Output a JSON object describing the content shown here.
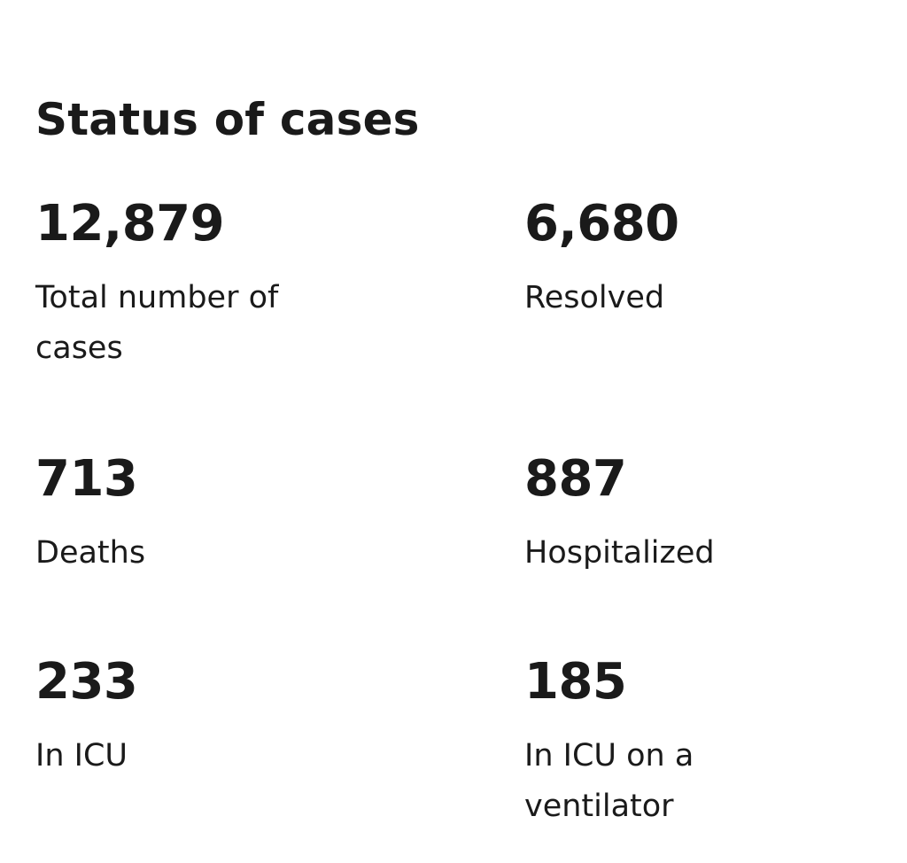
{
  "title": "Status of cases",
  "stats": [
    {
      "value": "12,879",
      "label": "Total number of cases"
    },
    {
      "value": "6,680",
      "label": "Resolved"
    },
    {
      "value": "713",
      "label": "Deaths"
    },
    {
      "value": "887",
      "label": "Hospitalized"
    },
    {
      "value": "233",
      "label": "In ICU"
    },
    {
      "value": "185",
      "label": "In ICU on a ventilator"
    }
  ]
}
